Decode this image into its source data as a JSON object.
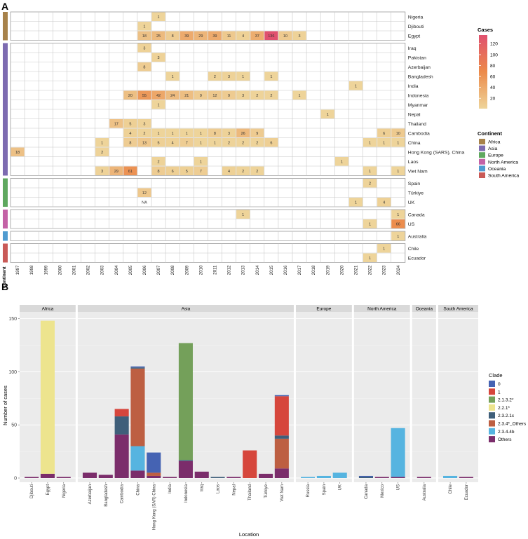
{
  "figure": {
    "panel_a_label": "A",
    "panel_b_label": "B"
  },
  "colors": {
    "continent": {
      "Africa": "#a7824a",
      "Asia": "#7d6bb0",
      "Europe": "#5fa85f",
      "North America": "#c462a6",
      "Oceania": "#4f9bd0",
      "South America": "#c95a57"
    },
    "clade": {
      "0": "#4563b3",
      "1": "#d6463c",
      "2.1.3.2*": "#74a05a",
      "2.2.1*": "#ede48e",
      "2.3.2.1c": "#3f5f7a",
      "2.3.4*_Others": "#bd5f42",
      "2.3.4.4b": "#56b4e0",
      "Others": "#7b2d6b"
    }
  },
  "chart_data": [
    {
      "type": "heatmap",
      "years": [
        "1997",
        "1998",
        "1999",
        "2000",
        "2001",
        "2002",
        "2003",
        "2004",
        "2005",
        "2006",
        "2007",
        "2008",
        "2009",
        "2010",
        "2011",
        "2012",
        "2013",
        "2014",
        "2015",
        "2016",
        "2017",
        "2018",
        "2019",
        "2020",
        "2021",
        "2022",
        "2023",
        "2024"
      ],
      "xlabel": "",
      "ylabel": "",
      "continent_axis_label": "Continent",
      "countries": [
        {
          "name": "Nigeria",
          "continent": "Africa"
        },
        {
          "name": "Djibouti",
          "continent": "Africa"
        },
        {
          "name": "Egypt",
          "continent": "Africa"
        },
        {
          "name": "Iraq",
          "continent": "Asia"
        },
        {
          "name": "Pakistan",
          "continent": "Asia"
        },
        {
          "name": "Azerbaijan",
          "continent": "Asia"
        },
        {
          "name": "Bangladesh",
          "continent": "Asia"
        },
        {
          "name": "India",
          "continent": "Asia"
        },
        {
          "name": "Indonesia",
          "continent": "Asia"
        },
        {
          "name": "Myanmar",
          "continent": "Asia"
        },
        {
          "name": "Nepal",
          "continent": "Asia"
        },
        {
          "name": "Thailand",
          "continent": "Asia"
        },
        {
          "name": "Cambodia",
          "continent": "Asia"
        },
        {
          "name": "China",
          "continent": "Asia"
        },
        {
          "name": "Hong Kong (SARS), China",
          "continent": "Asia"
        },
        {
          "name": "Laos",
          "continent": "Asia"
        },
        {
          "name": "Viet Nam",
          "continent": "Asia"
        },
        {
          "name": "Spain",
          "continent": "Europe"
        },
        {
          "name": "Türkiye",
          "continent": "Europe"
        },
        {
          "name": "UK",
          "continent": "Europe"
        },
        {
          "name": "Canada",
          "continent": "North America"
        },
        {
          "name": "US",
          "continent": "North America"
        },
        {
          "name": "Australia",
          "continent": "Oceania"
        },
        {
          "name": "Chile",
          "continent": "South America"
        },
        {
          "name": "Ecuador",
          "continent": "South America"
        }
      ],
      "cells": [
        [
          "Nigeria",
          "2007",
          1
        ],
        [
          "Djibouti",
          "2006",
          1
        ],
        [
          "Egypt",
          "2006",
          18
        ],
        [
          "Egypt",
          "2007",
          25
        ],
        [
          "Egypt",
          "2008",
          8
        ],
        [
          "Egypt",
          "2009",
          39
        ],
        [
          "Egypt",
          "2010",
          29
        ],
        [
          "Egypt",
          "2011",
          39
        ],
        [
          "Egypt",
          "2012",
          11
        ],
        [
          "Egypt",
          "2013",
          4
        ],
        [
          "Egypt",
          "2014",
          37
        ],
        [
          "Egypt",
          "2015",
          136
        ],
        [
          "Egypt",
          "2016",
          10
        ],
        [
          "Egypt",
          "2017",
          3
        ],
        [
          "Iraq",
          "2006",
          3
        ],
        [
          "Pakistan",
          "2007",
          3
        ],
        [
          "Azerbaijan",
          "2006",
          8
        ],
        [
          "Bangladesh",
          "2008",
          1
        ],
        [
          "Bangladesh",
          "2011",
          2
        ],
        [
          "Bangladesh",
          "2012",
          3
        ],
        [
          "Bangladesh",
          "2013",
          1
        ],
        [
          "Bangladesh",
          "2015",
          1
        ],
        [
          "India",
          "2021",
          1
        ],
        [
          "Indonesia",
          "2005",
          20
        ],
        [
          "Indonesia",
          "2006",
          55
        ],
        [
          "Indonesia",
          "2007",
          42
        ],
        [
          "Indonesia",
          "2008",
          24
        ],
        [
          "Indonesia",
          "2009",
          21
        ],
        [
          "Indonesia",
          "2010",
          9
        ],
        [
          "Indonesia",
          "2011",
          12
        ],
        [
          "Indonesia",
          "2012",
          9
        ],
        [
          "Indonesia",
          "2013",
          3
        ],
        [
          "Indonesia",
          "2014",
          2
        ],
        [
          "Indonesia",
          "2015",
          2
        ],
        [
          "Indonesia",
          "2017",
          1
        ],
        [
          "Myanmar",
          "2007",
          1
        ],
        [
          "Nepal",
          "2019",
          1
        ],
        [
          "Thailand",
          "2004",
          17
        ],
        [
          "Thailand",
          "2005",
          5
        ],
        [
          "Thailand",
          "2006",
          3
        ],
        [
          "Cambodia",
          "2005",
          4
        ],
        [
          "Cambodia",
          "2006",
          2
        ],
        [
          "Cambodia",
          "2007",
          1
        ],
        [
          "Cambodia",
          "2008",
          1
        ],
        [
          "Cambodia",
          "2009",
          1
        ],
        [
          "Cambodia",
          "2010",
          1
        ],
        [
          "Cambodia",
          "2011",
          8
        ],
        [
          "Cambodia",
          "2012",
          3
        ],
        [
          "Cambodia",
          "2013",
          26
        ],
        [
          "Cambodia",
          "2014",
          9
        ],
        [
          "Cambodia",
          "2023",
          6
        ],
        [
          "Cambodia",
          "2024",
          10
        ],
        [
          "China",
          "2003",
          1
        ],
        [
          "China",
          "2005",
          8
        ],
        [
          "China",
          "2006",
          13
        ],
        [
          "China",
          "2007",
          5
        ],
        [
          "China",
          "2008",
          4
        ],
        [
          "China",
          "2009",
          7
        ],
        [
          "China",
          "2010",
          1
        ],
        [
          "China",
          "2011",
          1
        ],
        [
          "China",
          "2012",
          2
        ],
        [
          "China",
          "2013",
          2
        ],
        [
          "China",
          "2014",
          2
        ],
        [
          "China",
          "2015",
          6
        ],
        [
          "China",
          "2022",
          1
        ],
        [
          "China",
          "2023",
          1
        ],
        [
          "China",
          "2024",
          1
        ],
        [
          "Hong Kong (SARS), China",
          "1997",
          18
        ],
        [
          "Hong Kong (SARS), China",
          "2003",
          2
        ],
        [
          "Laos",
          "2007",
          2
        ],
        [
          "Laos",
          "2010",
          1
        ],
        [
          "Laos",
          "2020",
          1
        ],
        [
          "Viet Nam",
          "2003",
          3
        ],
        [
          "Viet Nam",
          "2004",
          29
        ],
        [
          "Viet Nam",
          "2005",
          61
        ],
        [
          "Viet Nam",
          "2007",
          8
        ],
        [
          "Viet Nam",
          "2008",
          6
        ],
        [
          "Viet Nam",
          "2009",
          5
        ],
        [
          "Viet Nam",
          "2010",
          7
        ],
        [
          "Viet Nam",
          "2012",
          4
        ],
        [
          "Viet Nam",
          "2013",
          2
        ],
        [
          "Viet Nam",
          "2014",
          2
        ],
        [
          "Viet Nam",
          "2022",
          1
        ],
        [
          "Viet Nam",
          "2024",
          1
        ],
        [
          "Spain",
          "2022",
          2
        ],
        [
          "Türkiye",
          "2006",
          12
        ],
        [
          "UK",
          "2006",
          "NA"
        ],
        [
          "UK",
          "2021",
          1
        ],
        [
          "UK",
          "2023",
          4
        ],
        [
          "Canada",
          "2013",
          1
        ],
        [
          "Canada",
          "2024",
          1
        ],
        [
          "US",
          "2022",
          1
        ],
        [
          "US",
          "2024",
          66
        ],
        [
          "Australia",
          "2024",
          1
        ],
        [
          "Chile",
          "2023",
          1
        ],
        [
          "Ecuador",
          "2022",
          1
        ]
      ],
      "color_scale": {
        "min": 1,
        "max": 136,
        "low_color": "#eed49a",
        "mid_color": "#ec8a4a",
        "high_color": "#e0506e"
      },
      "colorbar": {
        "title": "Cases",
        "ticks": [
          20,
          40,
          60,
          80,
          100,
          120
        ]
      },
      "continent_legend": {
        "title": "Continent",
        "entries": [
          "Africa",
          "Asia",
          "Europe",
          "North America",
          "Oceania",
          "South America"
        ]
      }
    },
    {
      "type": "bar",
      "stacked": true,
      "xlabel": "Location",
      "ylabel": "Number of cases",
      "ylim": [
        0,
        155
      ],
      "yticks": [
        0,
        50,
        100,
        150
      ],
      "legend": {
        "title": "Clade",
        "entries": [
          "0",
          "1",
          "2.1.3.2*",
          "2.2.1*",
          "2.3.2.1c",
          "2.3.4*_Others",
          "2.3.4.4b",
          "Others"
        ],
        "placement": "right"
      },
      "facets": [
        {
          "name": "Africa",
          "locations": [
            {
              "name": "Djibouti",
              "stack": [
                [
                  "Others",
                  1
                ]
              ]
            },
            {
              "name": "Egypt",
              "stack": [
                [
                  "Others",
                  4
                ],
                [
                  "2.2.1*",
                  144
                ]
              ]
            },
            {
              "name": "Nigeria",
              "stack": [
                [
                  "Others",
                  1
                ]
              ]
            }
          ]
        },
        {
          "name": "Asia",
          "locations": [
            {
              "name": "Azerbaijan",
              "stack": [
                [
                  "Others",
                  5
                ]
              ]
            },
            {
              "name": "Bangladesh",
              "stack": [
                [
                  "Others",
                  3
                ]
              ]
            },
            {
              "name": "Cambodia",
              "stack": [
                [
                  "Others",
                  41
                ],
                [
                  "2.3.2.1c",
                  17
                ],
                [
                  "1",
                  7
                ]
              ]
            },
            {
              "name": "China",
              "stack": [
                [
                  "Others",
                  7
                ],
                [
                  "2.3.4.4b",
                  23
                ],
                [
                  "2.3.4*_Others",
                  73
                ],
                [
                  "2.3.2.1c",
                  1
                ],
                [
                  "0",
                  1
                ]
              ]
            },
            {
              "name": "Hong Kong (SAR) China",
              "stack": [
                [
                  "Others",
                  2
                ],
                [
                  "2.3.4*_Others",
                  3
                ],
                [
                  "0",
                  19
                ]
              ]
            },
            {
              "name": "India",
              "stack": [
                [
                  "Others",
                  1
                ]
              ]
            },
            {
              "name": "Indonesia",
              "stack": [
                [
                  "Others",
                  16
                ],
                [
                  "2.3.2.1c",
                  1
                ],
                [
                  "2.1.3.2*",
                  110
                ]
              ]
            },
            {
              "name": "Iraq",
              "stack": [
                [
                  "Others",
                  6
                ]
              ]
            },
            {
              "name": "Laos",
              "stack": [
                [
                  "2.3.2.1c",
                  1
                ]
              ]
            },
            {
              "name": "Nepal",
              "stack": [
                [
                  "Others",
                  1
                ]
              ]
            },
            {
              "name": "Thailand",
              "stack": [
                [
                  "1",
                  26
                ]
              ]
            },
            {
              "name": "Türkiye",
              "stack": [
                [
                  "Others",
                  4
                ]
              ]
            },
            {
              "name": "Viet Nam",
              "stack": [
                [
                  "Others",
                  9
                ],
                [
                  "2.3.4*_Others",
                  28
                ],
                [
                  "2.3.2.1c",
                  3
                ],
                [
                  "1",
                  37
                ],
                [
                  "0",
                  1
                ]
              ]
            }
          ]
        },
        {
          "name": "Europe",
          "locations": [
            {
              "name": "Russia",
              "stack": [
                [
                  "2.3.4.4b",
                  1
                ]
              ]
            },
            {
              "name": "Spain",
              "stack": [
                [
                  "2.3.4.4b",
                  2
                ]
              ]
            },
            {
              "name": "UK",
              "stack": [
                [
                  "2.3.4.4b",
                  5
                ]
              ]
            }
          ]
        },
        {
          "name": "North America",
          "locations": [
            {
              "name": "Canada",
              "stack": [
                [
                  "2.3.2.1c",
                  1
                ],
                [
                  "0",
                  1
                ]
              ]
            },
            {
              "name": "Mexico",
              "stack": [
                [
                  "Others",
                  1
                ]
              ]
            },
            {
              "name": "US",
              "stack": [
                [
                  "Others",
                  1
                ],
                [
                  "2.3.4.4b",
                  46
                ]
              ]
            }
          ]
        },
        {
          "name": "Oceania",
          "locations": [
            {
              "name": "Australia",
              "stack": [
                [
                  "Others",
                  1
                ]
              ]
            }
          ]
        },
        {
          "name": "South America",
          "locations": [
            {
              "name": "Chile",
              "stack": [
                [
                  "2.3.4.4b",
                  2
                ]
              ]
            },
            {
              "name": "Ecuador",
              "stack": [
                [
                  "Others",
                  1
                ]
              ]
            }
          ]
        }
      ]
    }
  ]
}
